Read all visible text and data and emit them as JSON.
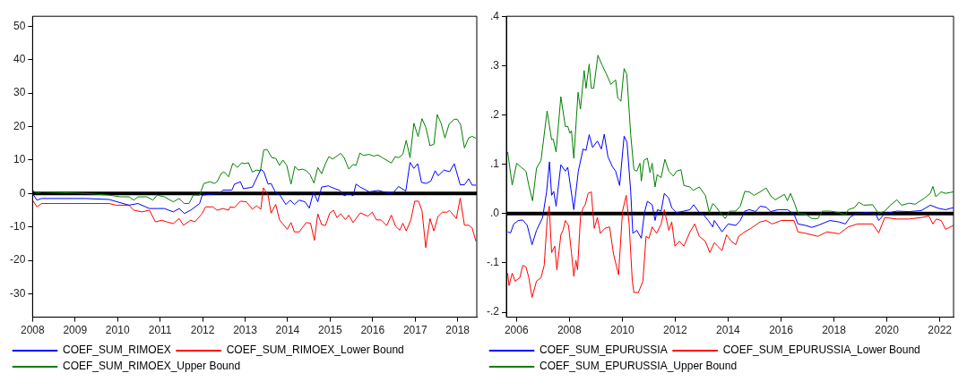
{
  "chart_data": [
    {
      "type": "line",
      "xlim": [
        2008,
        2018.45
      ],
      "xticks": [
        2008,
        2009,
        2010,
        2011,
        2012,
        2013,
        2014,
        2015,
        2016,
        2017,
        2018
      ],
      "ylim": [
        -37,
        53
      ],
      "yticks": [
        -30,
        -20,
        -10,
        0,
        10,
        20,
        30,
        40,
        50
      ],
      "grid": false,
      "legend": "bottom",
      "ref_lines": [
        {
          "axis": "y",
          "value": 0,
          "color": "#000000"
        }
      ],
      "series": [
        {
          "name": "COEF_SUM_RIMOEX",
          "color": "#0000ff",
          "x": [
            2008.0,
            2008.1,
            2008.21,
            2009.24,
            2009.8,
            2010.27,
            2010.48,
            2010.75,
            2011.1,
            2011.31,
            2011.45,
            2011.57,
            2011.72,
            2011.93,
            2011.99,
            2012.4,
            2012.48,
            2012.69,
            2012.75,
            2012.89,
            2012.96,
            2013.17,
            2013.37,
            2013.44,
            2013.54,
            2013.61,
            2013.72,
            2013.82,
            2013.96,
            2014.06,
            2014.16,
            2014.27,
            2014.41,
            2014.51,
            2014.61,
            2014.71,
            2014.8,
            2014.96,
            2015.02,
            2015.23,
            2015.33,
            2015.44,
            2015.54,
            2015.61,
            2015.71,
            2015.92,
            2016.13,
            2016.26,
            2016.47,
            2016.61,
            2016.78,
            2016.88,
            2016.97,
            2017.06,
            2017.15,
            2017.26,
            2017.37,
            2017.47,
            2017.54,
            2017.68,
            2017.81,
            2017.92,
            2018.06,
            2018.16,
            2018.26,
            2018.34,
            2018.43
          ],
          "values": [
            0,
            -2,
            -1.5,
            -1.5,
            -1.8,
            -3.5,
            -3,
            -4.5,
            -4.5,
            -5.5,
            -4.5,
            -6,
            -5,
            -3,
            -0.5,
            0,
            1,
            1,
            2.8,
            3.5,
            1.4,
            1.9,
            7.2,
            6.5,
            2.8,
            3,
            0.2,
            -0.5,
            -3.3,
            -2,
            -3.3,
            -2,
            -2.5,
            -4.4,
            0.5,
            -2.5,
            1.9,
            2.3,
            1.9,
            0.9,
            -0.7,
            0,
            -0.7,
            2.8,
            1.9,
            0.5,
            0.9,
            0.5,
            0,
            2.1,
            0.7,
            9.3,
            7.5,
            8.9,
            3.3,
            3,
            3.7,
            6.8,
            5.3,
            7,
            6.5,
            8.9,
            2.6,
            2.6,
            4.4,
            2.5,
            2.5
          ]
        },
        {
          "name": "COEF_SUM_RIMOEX_Lower Bound",
          "color": "#ff0000",
          "x": [
            2008.0,
            2008.1,
            2008.21,
            2009.8,
            2009.96,
            2010.27,
            2010.38,
            2010.58,
            2010.75,
            2010.89,
            2011.04,
            2011.16,
            2011.31,
            2011.45,
            2011.55,
            2011.72,
            2011.82,
            2011.99,
            2012.07,
            2012.24,
            2012.34,
            2012.48,
            2012.61,
            2012.65,
            2012.75,
            2012.89,
            2013.03,
            2013.17,
            2013.27,
            2013.37,
            2013.43,
            2013.54,
            2013.61,
            2013.72,
            2013.81,
            2013.99,
            2014.08,
            2014.16,
            2014.27,
            2014.44,
            2014.54,
            2014.63,
            2014.71,
            2014.8,
            2014.89,
            2014.99,
            2015.08,
            2015.16,
            2015.25,
            2015.36,
            2015.44,
            2015.54,
            2015.71,
            2015.89,
            2015.99,
            2016.09,
            2016.2,
            2016.33,
            2016.44,
            2016.54,
            2016.64,
            2016.71,
            2016.79,
            2016.9,
            2016.99,
            2017.08,
            2017.16,
            2017.25,
            2017.35,
            2017.44,
            2017.54,
            2017.64,
            2017.75,
            2017.81,
            2017.97,
            2018.06,
            2018.16,
            2018.26,
            2018.34,
            2018.43
          ],
          "values": [
            -2,
            -4,
            -3,
            -3,
            -3.5,
            -3.5,
            -5,
            -5.5,
            -5,
            -8.5,
            -8,
            -8.5,
            -9,
            -7.5,
            -9.5,
            -8,
            -8.5,
            -6,
            -4,
            -4,
            -5,
            -4.5,
            -5,
            -4,
            -4.2,
            -2.3,
            -2.5,
            -4.7,
            -3.7,
            -4.7,
            1.7,
            -0.5,
            -5.9,
            -3.3,
            -7.9,
            -10.7,
            -8.7,
            -11.5,
            -11.5,
            -8.7,
            -8.9,
            -14,
            -6.1,
            -9.3,
            -9.6,
            -5.9,
            -5,
            -7.2,
            -6.1,
            -7.8,
            -6.5,
            -8.7,
            -5.8,
            -6.8,
            -5.6,
            -7.9,
            -7.9,
            -9.6,
            -6.5,
            -9.8,
            -11,
            -8.9,
            -11.2,
            -7.9,
            -2.3,
            -2.3,
            -5.1,
            -16.2,
            -7.5,
            -11.2,
            -6.8,
            -5.6,
            -5.6,
            -5.1,
            -7.5,
            -1.4,
            -9.5,
            -9.5,
            -10.3,
            -14.3
          ]
        },
        {
          "name": "COEF_SUM_RIMOEX_Upper Bound",
          "color": "#008000",
          "x": [
            2008.0,
            2008.1,
            2008.21,
            2009.24,
            2009.8,
            2010.07,
            2010.27,
            2010.38,
            2010.48,
            2010.69,
            2010.83,
            2010.93,
            2011.1,
            2011.31,
            2011.45,
            2011.57,
            2011.68,
            2011.78,
            2011.93,
            2012.03,
            2012.17,
            2012.28,
            2012.34,
            2012.44,
            2012.5,
            2012.61,
            2012.71,
            2012.75,
            2012.82,
            2012.92,
            2012.99,
            2013.08,
            2013.17,
            2013.27,
            2013.36,
            2013.44,
            2013.52,
            2013.63,
            2013.72,
            2013.81,
            2013.89,
            2013.98,
            2014.08,
            2014.17,
            2014.25,
            2014.35,
            2014.44,
            2014.53,
            2014.62,
            2014.71,
            2014.8,
            2014.89,
            2014.97,
            2015.06,
            2015.25,
            2015.33,
            2015.44,
            2015.54,
            2015.61,
            2015.7,
            2015.78,
            2015.92,
            2016.02,
            2016.13,
            2016.23,
            2016.44,
            2016.53,
            2016.61,
            2016.71,
            2016.79,
            2016.88,
            2016.97,
            2017.07,
            2017.16,
            2017.25,
            2017.35,
            2017.44,
            2017.52,
            2017.61,
            2017.7,
            2017.8,
            2017.92,
            2017.99,
            2018.07,
            2018.16,
            2018.26,
            2018.34,
            2018.43
          ],
          "values": [
            1,
            0,
            0.5,
            0,
            -0.5,
            -1,
            -1,
            -2,
            -1,
            -1,
            -2,
            -0.5,
            -1,
            -2.5,
            -1.5,
            -3,
            -3,
            -0.5,
            -0.5,
            3,
            3.5,
            3,
            3.5,
            6,
            6.5,
            5,
            9,
            8.6,
            7.8,
            9.2,
            8.9,
            9.2,
            6.4,
            7,
            6.8,
            13.1,
            13.1,
            10.7,
            10.5,
            8.4,
            10,
            8.4,
            2.8,
            8.1,
            7,
            7.3,
            6.8,
            5.6,
            3.1,
            7.8,
            5.9,
            8.9,
            11,
            10.3,
            12,
            10.7,
            7.3,
            8.7,
            8.4,
            12.1,
            11.4,
            11.7,
            11.2,
            11.5,
            10.7,
            9.1,
            11,
            10.7,
            11.7,
            15.9,
            10.7,
            21,
            17,
            22.4,
            19.8,
            14.3,
            14.7,
            23.6,
            21,
            16.6,
            20.8,
            22.2,
            22.2,
            20.6,
            13.6,
            16.6,
            17.1,
            16.5
          ]
        }
      ]
    },
    {
      "type": "line",
      "xlim": [
        2005.62,
        2022.52
      ],
      "xticks": [
        2006,
        2008,
        2010,
        2012,
        2014,
        2016,
        2018,
        2020,
        2022
      ],
      "ylim": [
        -0.21,
        0.4
      ],
      "yticks": [
        {
          "value": -0.2,
          "label": "-.2"
        },
        {
          "value": -0.1,
          "label": "-.1"
        },
        {
          "value": 0,
          "label": ".0"
        },
        {
          "value": 0.1,
          "label": ".1"
        },
        {
          "value": 0.2,
          "label": ".2"
        },
        {
          "value": 0.3,
          "label": ".3"
        },
        {
          "value": 0.4,
          "label": ".4"
        }
      ],
      "grid": false,
      "legend": "bottom",
      "ref_lines": [
        {
          "axis": "y",
          "value": 0,
          "color": "#000000"
        }
      ],
      "series": [
        {
          "name": "COEF_SUM_EPURUSSIA",
          "color": "#0000ff",
          "x": [
            2005.67,
            2005.78,
            2005.9,
            2006.07,
            2006.24,
            2006.41,
            2006.59,
            2006.76,
            2006.99,
            2007.14,
            2007.25,
            2007.33,
            2007.41,
            2007.5,
            2007.68,
            2007.85,
            2007.94,
            2008.17,
            2008.34,
            2008.52,
            2008.63,
            2008.75,
            2008.88,
            2009.06,
            2009.21,
            2009.32,
            2009.46,
            2009.63,
            2009.75,
            2009.9,
            2010.07,
            2010.18,
            2010.32,
            2010.4,
            2010.55,
            2010.72,
            2010.84,
            2010.95,
            2011.13,
            2011.24,
            2011.33,
            2011.47,
            2011.59,
            2011.76,
            2011.87,
            2012.05,
            2012.33,
            2012.56,
            2012.7,
            2012.91,
            2013.08,
            2013.25,
            2013.42,
            2013.48,
            2013.77,
            2014.0,
            2014.29,
            2014.46,
            2014.63,
            2014.8,
            2015.04,
            2015.21,
            2015.44,
            2015.61,
            2015.9,
            2016.24,
            2016.49,
            2016.64,
            2016.93,
            2017.16,
            2017.39,
            2017.85,
            2018.2,
            2018.43,
            2018.6,
            2018.83,
            2019.23,
            2019.58,
            2019.69,
            2019.92,
            2020.38,
            2020.84,
            2021.3,
            2021.64,
            2021.99,
            2022.22,
            2022.51
          ],
          "values": [
            -0.037,
            -0.039,
            -0.021,
            -0.014,
            -0.013,
            -0.024,
            -0.063,
            -0.034,
            -0.008,
            0.044,
            0.105,
            0.037,
            0.045,
            0.015,
            0.099,
            0.086,
            0.094,
            0.008,
            0.086,
            0.131,
            0.128,
            0.16,
            0.134,
            0.147,
            0.131,
            0.161,
            0.115,
            0.095,
            0.086,
            0.057,
            0.157,
            0.144,
            0.044,
            -0.04,
            -0.034,
            -0.05,
            0.002,
            0.025,
            0.018,
            -0.014,
            0.008,
            0.005,
            0.041,
            0.031,
            0.012,
            0.002,
            0.005,
            0.008,
            0.018,
            0.002,
            -0.003,
            -0.014,
            -0.027,
            -0.014,
            -0.037,
            -0.021,
            -0.024,
            -0.014,
            0.005,
            0.008,
            0.004,
            0.015,
            0.013,
            0.004,
            0.008,
            0.008,
            -0.001,
            -0.021,
            -0.024,
            -0.028,
            -0.024,
            -0.014,
            -0.017,
            -0.021,
            -0.008,
            0.0,
            0.002,
            0.0,
            -0.014,
            0.0,
            0.005,
            0.004,
            0.006,
            0.017,
            0.01,
            0.008,
            0.012
          ]
        },
        {
          "name": "COEF_SUM_EPURUSSIA_Lower Bound",
          "color": "#ff0000",
          "x": [
            2005.67,
            2005.72,
            2005.84,
            2005.95,
            2006.13,
            2006.24,
            2006.36,
            2006.47,
            2006.59,
            2006.76,
            2006.93,
            2007.05,
            2007.16,
            2007.24,
            2007.33,
            2007.45,
            2007.53,
            2007.68,
            2007.76,
            2007.85,
            2007.97,
            2008.08,
            2008.17,
            2008.25,
            2008.31,
            2008.42,
            2008.52,
            2008.6,
            2008.71,
            2008.83,
            2008.94,
            2009.06,
            2009.17,
            2009.34,
            2009.52,
            2009.67,
            2009.86,
            2010.01,
            2010.15,
            2010.26,
            2010.38,
            2010.44,
            2010.61,
            2010.78,
            2010.9,
            2011.01,
            2011.13,
            2011.3,
            2011.47,
            2011.59,
            2011.76,
            2011.87,
            2011.99,
            2012.16,
            2012.33,
            2012.56,
            2012.74,
            2012.91,
            2013.14,
            2013.31,
            2013.48,
            2013.6,
            2013.77,
            2013.94,
            2014.12,
            2014.29,
            2014.4,
            2014.63,
            2014.86,
            2015.21,
            2015.44,
            2015.67,
            2016.01,
            2016.49,
            2016.64,
            2016.93,
            2017.39,
            2017.74,
            2018.2,
            2018.54,
            2018.89,
            2019.46,
            2019.69,
            2019.92,
            2020.38,
            2020.84,
            2021.3,
            2021.59,
            2021.74,
            2021.87,
            2022.05,
            2022.22,
            2022.51
          ],
          "values": [
            -0.121,
            -0.146,
            -0.121,
            -0.137,
            -0.13,
            -0.105,
            -0.108,
            -0.13,
            -0.17,
            -0.137,
            -0.13,
            -0.105,
            -0.014,
            0.015,
            -0.079,
            -0.066,
            -0.114,
            -0.043,
            -0.034,
            -0.014,
            -0.024,
            -0.079,
            -0.127,
            -0.095,
            -0.114,
            -0.008,
            0.012,
            0.018,
            0.041,
            0.044,
            -0.03,
            -0.008,
            -0.04,
            -0.03,
            -0.027,
            -0.082,
            -0.124,
            0.005,
            0.037,
            -0.021,
            -0.137,
            -0.16,
            -0.16,
            -0.137,
            -0.046,
            -0.05,
            -0.027,
            -0.04,
            -0.021,
            0.008,
            -0.034,
            -0.017,
            -0.066,
            -0.056,
            -0.066,
            -0.037,
            -0.021,
            -0.046,
            -0.056,
            -0.079,
            -0.059,
            -0.066,
            -0.075,
            -0.043,
            -0.056,
            -0.063,
            -0.046,
            -0.037,
            -0.03,
            -0.017,
            -0.014,
            -0.021,
            -0.014,
            -0.014,
            -0.037,
            -0.04,
            -0.046,
            -0.037,
            -0.041,
            -0.027,
            -0.021,
            -0.021,
            -0.039,
            -0.008,
            -0.011,
            -0.011,
            -0.008,
            -0.005,
            -0.021,
            -0.011,
            -0.014,
            -0.032,
            -0.024
          ]
        },
        {
          "name": "COEF_SUM_EPURUSSIA_Upper Bound",
          "color": "#008000",
          "x": [
            2005.67,
            2005.84,
            2006.01,
            2006.18,
            2006.36,
            2006.47,
            2006.61,
            2006.76,
            2006.93,
            2007.16,
            2007.33,
            2007.39,
            2007.5,
            2007.68,
            2007.85,
            2007.94,
            2008.02,
            2008.08,
            2008.17,
            2008.33,
            2008.42,
            2008.56,
            2008.63,
            2008.75,
            2008.83,
            2008.92,
            2009.08,
            2009.23,
            2009.4,
            2009.57,
            2009.75,
            2009.83,
            2009.95,
            2010.07,
            2010.17,
            2010.32,
            2010.44,
            2010.55,
            2010.67,
            2010.72,
            2010.82,
            2010.95,
            2011.05,
            2011.13,
            2011.24,
            2011.32,
            2011.47,
            2011.61,
            2011.76,
            2011.93,
            2012.05,
            2012.22,
            2012.33,
            2012.56,
            2012.68,
            2012.91,
            2013.14,
            2013.29,
            2013.42,
            2013.48,
            2013.66,
            2013.89,
            2014.06,
            2014.29,
            2014.46,
            2014.63,
            2014.8,
            2014.98,
            2015.21,
            2015.44,
            2015.61,
            2015.78,
            2016.13,
            2016.24,
            2016.36,
            2016.53,
            2016.64,
            2016.93,
            2017.16,
            2017.39,
            2017.56,
            2017.85,
            2018.2,
            2018.43,
            2018.54,
            2018.77,
            2018.94,
            2019.12,
            2019.46,
            2019.69,
            2019.92,
            2020.15,
            2020.38,
            2020.55,
            2020.84,
            2021.07,
            2021.41,
            2021.64,
            2021.74,
            2021.85,
            2022.05,
            2022.22,
            2022.51
          ],
          "values": [
            0.125,
            0.058,
            0.102,
            0.094,
            0.086,
            0.057,
            0.026,
            0.092,
            0.108,
            0.208,
            0.15,
            0.151,
            0.125,
            0.237,
            0.176,
            0.177,
            0.163,
            0.168,
            0.112,
            0.246,
            0.212,
            0.29,
            0.254,
            0.303,
            0.254,
            0.254,
            0.321,
            0.302,
            0.283,
            0.262,
            0.271,
            0.234,
            0.228,
            0.294,
            0.283,
            0.16,
            0.089,
            0.086,
            0.102,
            0.066,
            0.108,
            0.112,
            0.083,
            0.102,
            0.054,
            0.079,
            0.073,
            0.11,
            0.086,
            0.076,
            0.086,
            0.089,
            0.057,
            0.054,
            0.047,
            0.054,
            0.037,
            0.002,
            0.02,
            0.018,
            0.005,
            -0.01,
            0.005,
            0.005,
            0.015,
            0.045,
            0.044,
            0.037,
            0.044,
            0.052,
            0.036,
            0.028,
            0.039,
            0.026,
            0.041,
            0.018,
            0.0,
            -0.001,
            -0.01,
            -0.01,
            0.005,
            0.005,
            0.002,
            -0.003,
            0.008,
            0.012,
            0.023,
            0.017,
            0.018,
            0.0,
            0.005,
            0.018,
            0.028,
            0.017,
            0.021,
            0.019,
            0.031,
            0.041,
            0.055,
            0.034,
            0.044,
            0.041,
            0.044
          ]
        }
      ]
    }
  ]
}
